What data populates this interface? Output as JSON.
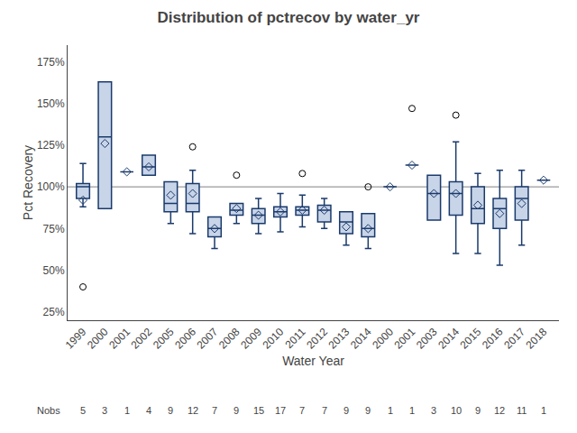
{
  "chart_data": {
    "type": "box",
    "title": "Distribution of pctrecov by water_yr",
    "xlabel": "Water Year",
    "ylabel": "Pct Recovery",
    "categories": [
      "1999",
      "2000",
      "2001",
      "2002",
      "2005",
      "2006",
      "2007",
      "2008",
      "2009",
      "2010",
      "2011",
      "2012",
      "2013",
      "2014",
      "2000",
      "2001",
      "2003",
      "2014",
      "2015",
      "2016",
      "2017",
      "2018"
    ],
    "boxes": [
      {
        "q1": 93,
        "median": 100,
        "q3": 102,
        "whislo": 88,
        "whishi": 114
      },
      {
        "q1": 87,
        "median": 130,
        "q3": 163,
        "whislo": 87,
        "whishi": 163
      },
      {
        "q1": 109,
        "median": 109,
        "q3": 109,
        "whislo": 109,
        "whishi": 109
      },
      {
        "q1": 107,
        "median": 112,
        "q3": 119,
        "whislo": 107,
        "whishi": 119
      },
      {
        "q1": 85,
        "median": 90,
        "q3": 103,
        "whislo": 78,
        "whishi": 103
      },
      {
        "q1": 85,
        "median": 90,
        "q3": 102,
        "whislo": 72,
        "whishi": 110
      },
      {
        "q1": 70,
        "median": 75,
        "q3": 82,
        "whislo": 63,
        "whishi": 82
      },
      {
        "q1": 83,
        "median": 86,
        "q3": 90,
        "whislo": 78,
        "whishi": 90
      },
      {
        "q1": 78,
        "median": 83,
        "q3": 87,
        "whislo": 72,
        "whishi": 93
      },
      {
        "q1": 82,
        "median": 85,
        "q3": 88,
        "whislo": 73,
        "whishi": 96
      },
      {
        "q1": 83,
        "median": 86,
        "q3": 88,
        "whislo": 76,
        "whishi": 95
      },
      {
        "q1": 79,
        "median": 86,
        "q3": 89,
        "whislo": 75,
        "whishi": 93
      },
      {
        "q1": 72,
        "median": 79,
        "q3": 85,
        "whislo": 65,
        "whishi": 85
      },
      {
        "q1": 70,
        "median": 75,
        "q3": 84,
        "whislo": 63,
        "whishi": 84
      },
      {
        "q1": 100,
        "median": 100,
        "q3": 100,
        "whislo": 100,
        "whishi": 100
      },
      {
        "q1": 113,
        "median": 113,
        "q3": 113,
        "whislo": 113,
        "whishi": 113
      },
      {
        "q1": 80,
        "median": 96,
        "q3": 107,
        "whislo": 80,
        "whishi": 107
      },
      {
        "q1": 83,
        "median": 96,
        "q3": 103,
        "whislo": 60,
        "whishi": 127
      },
      {
        "q1": 78,
        "median": 87,
        "q3": 100,
        "whislo": 60,
        "whishi": 108
      },
      {
        "q1": 75,
        "median": 87,
        "q3": 93,
        "whislo": 53,
        "whishi": 110
      },
      {
        "q1": 80,
        "median": 93,
        "q3": 100,
        "whislo": 65,
        "whishi": 110
      },
      {
        "q1": 104,
        "median": 104,
        "q3": 104,
        "whislo": 104,
        "whishi": 104
      }
    ],
    "color": "#c8d4e8",
    "edge_color": "#1a3a6b",
    "series": [
      {
        "type": "scatter",
        "marker": "diamond-open",
        "color": "#1a3a6b",
        "values": [
          92,
          126,
          109,
          112,
          95,
          96,
          75,
          87,
          83,
          85,
          86,
          86,
          76,
          75,
          100,
          113,
          96,
          96,
          89,
          84,
          90,
          104
        ]
      },
      {
        "type": "scatter",
        "marker": "circle-open",
        "color": "#000000",
        "values": [
          [
            40
          ],
          [],
          [],
          [],
          [],
          [
            124
          ],
          [],
          [
            107
          ],
          [],
          [],
          [
            108
          ],
          [],
          [],
          [
            100
          ],
          [],
          [
            147
          ],
          [],
          [
            143
          ],
          [],
          [],
          [],
          []
        ]
      }
    ],
    "reference_line": {
      "value": 100,
      "color": "#808080"
    },
    "nobs_label": "Nobs",
    "nobs": [
      5,
      3,
      1,
      4,
      9,
      12,
      7,
      9,
      15,
      17,
      7,
      7,
      9,
      9,
      1,
      1,
      3,
      10,
      9,
      12,
      11,
      1
    ],
    "ylim": [
      20,
      185
    ],
    "yticks": [
      {
        "value": 25,
        "label": "25%"
      },
      {
        "value": 50,
        "label": "50%"
      },
      {
        "value": 75,
        "label": "75%"
      },
      {
        "value": 100,
        "label": "100%"
      },
      {
        "value": 125,
        "label": "125%"
      },
      {
        "value": 150,
        "label": "150%"
      },
      {
        "value": 175,
        "label": "175%"
      }
    ],
    "grid": false
  }
}
